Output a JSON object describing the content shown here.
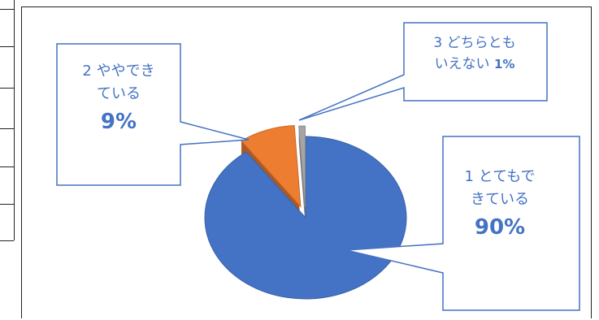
{
  "chart_data": {
    "type": "pie",
    "style": "3d-exploded",
    "categories": [
      "1 とてもできている",
      "2 ややできている",
      "3 どちらともいえない"
    ],
    "values": [
      90,
      9,
      1
    ],
    "colors": [
      "#4472C4",
      "#ED7D31",
      "#A5A5A5"
    ],
    "data_labels": [
      {
        "line1": "1 とてもで",
        "line2": "きている",
        "pct": "90%"
      },
      {
        "line1": "2 ややでき",
        "line2": "ている",
        "pct": "9%"
      },
      {
        "line1": "3 どちらとも",
        "line2": "いえない",
        "pct": "1%"
      }
    ],
    "legend": "none"
  }
}
